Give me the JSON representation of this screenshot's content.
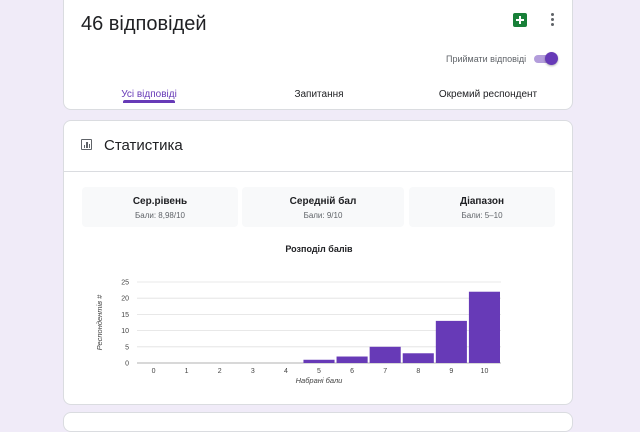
{
  "header": {
    "response_count": "46 відповідей",
    "accept_label": "Приймати відповіді",
    "accepting": true
  },
  "tabs": [
    {
      "label": "Усі відповіді",
      "active": true
    },
    {
      "label": "Запитання",
      "active": false
    },
    {
      "label": "Окремий респондент",
      "active": false
    }
  ],
  "statistics": {
    "title": "Статистика",
    "boxes": [
      {
        "name": "Сер.рівень",
        "value": "Бали: 8,98/10"
      },
      {
        "name": "Середній бал",
        "value": "Бали: 9/10"
      },
      {
        "name": "Діапазон",
        "value": "Бали: 5–10"
      }
    ]
  },
  "colors": {
    "accent": "#673ab7",
    "bar": "#673ab7",
    "background": "#f0ebf8",
    "sheets": "#188038"
  },
  "chart_data": {
    "type": "bar",
    "title": "Розподіл балів",
    "xlabel": "Набрані бали",
    "ylabel": "Респондентів #",
    "categories": [
      "0",
      "1",
      "2",
      "3",
      "4",
      "5",
      "6",
      "7",
      "8",
      "9",
      "10"
    ],
    "values": [
      0,
      0,
      0,
      0,
      0,
      1,
      2,
      5,
      3,
      13,
      22
    ],
    "yticks": [
      0,
      5,
      10,
      15,
      20,
      25
    ],
    "ylim": [
      0,
      25
    ],
    "grid": true,
    "legend": "none"
  }
}
